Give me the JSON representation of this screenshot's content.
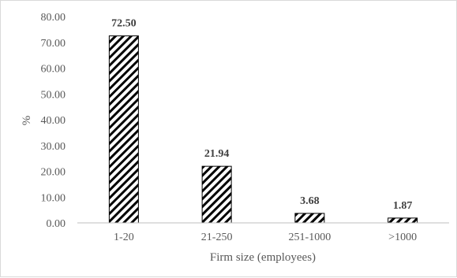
{
  "chart_data": {
    "type": "bar",
    "title": "",
    "xlabel": "Firm size (employees)",
    "ylabel": "%",
    "categories": [
      "1-20",
      "21-250",
      "251-1000",
      ">1000"
    ],
    "values": [
      72.5,
      21.94,
      3.68,
      1.87
    ],
    "value_labels": [
      "72.50",
      "21.94",
      "3.68",
      "1.87"
    ],
    "ylim": [
      0,
      80
    ],
    "yticks": [
      "0.00",
      "10.00",
      "20.00",
      "30.00",
      "40.00",
      "50.00",
      "60.00",
      "70.00",
      "80.00"
    ],
    "grid": false,
    "legend": "none",
    "bar_fill": "diagonal-hatch",
    "colors": {
      "bar_stroke": "#000000",
      "hatch": "#000000",
      "axis": "#bfbfbf"
    }
  }
}
